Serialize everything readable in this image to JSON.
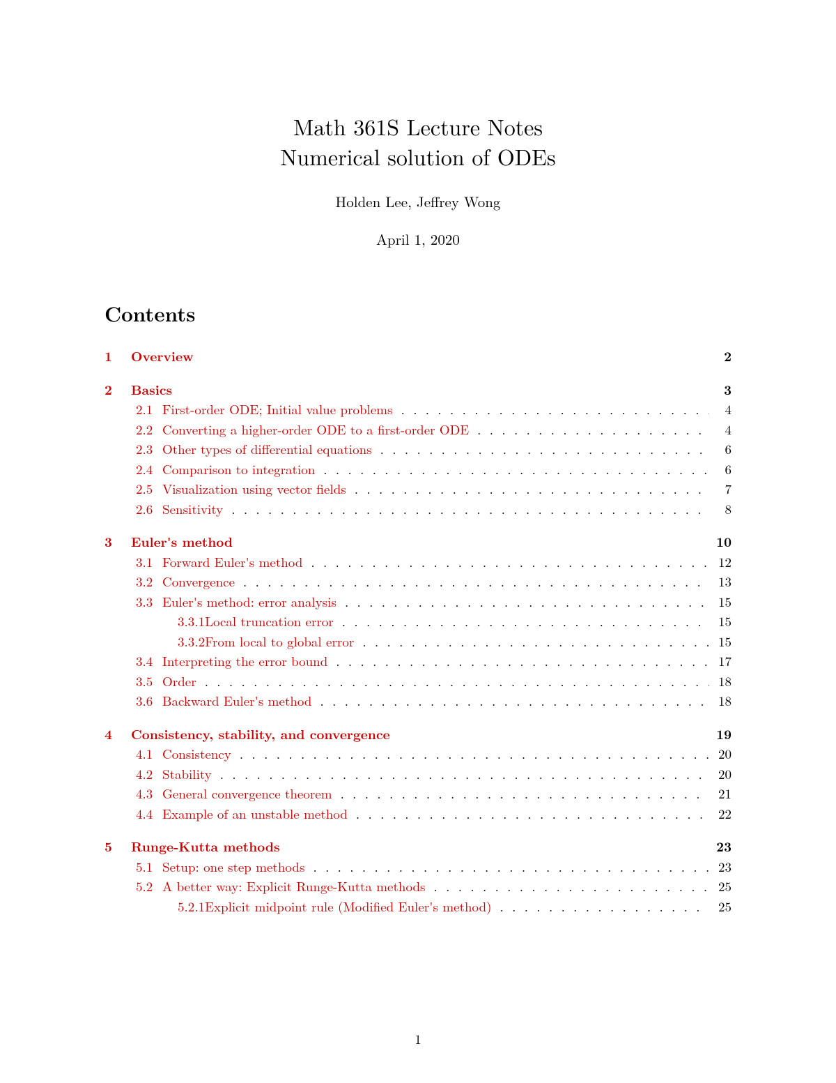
{
  "title": {
    "line1": "Math 361S Lecture Notes",
    "line2": "Numerical solution of ODEs"
  },
  "authors": "Holden Lee, Jeffrey Wong",
  "date": "April 1, 2020",
  "contents_heading": "Contents",
  "link_color": "#cc0000",
  "text_color": "#000000",
  "background_color": "#ffffff",
  "font_sizes": {
    "title": 32,
    "authors": 21,
    "date": 21,
    "contents_heading": 29,
    "toc": 19,
    "page_number": 19
  },
  "page_number": "1",
  "toc": [
    {
      "num": "1",
      "title": "Overview",
      "page": "2",
      "subs": []
    },
    {
      "num": "2",
      "title": "Basics",
      "page": "3",
      "subs": [
        {
          "num": "2.1",
          "title": "First-order ODE; Initial value problems",
          "page": "4"
        },
        {
          "num": "2.2",
          "title": "Converting a higher-order ODE to a first-order ODE",
          "page": "4"
        },
        {
          "num": "2.3",
          "title": "Other types of differential equations",
          "page": "6"
        },
        {
          "num": "2.4",
          "title": "Comparison to integration",
          "page": "6"
        },
        {
          "num": "2.5",
          "title": "Visualization using vector fields",
          "page": "7"
        },
        {
          "num": "2.6",
          "title": "Sensitivity",
          "page": "8"
        }
      ]
    },
    {
      "num": "3",
      "title": "Euler's method",
      "page": "10",
      "subs": [
        {
          "num": "3.1",
          "title": "Forward Euler's method",
          "page": "12"
        },
        {
          "num": "3.2",
          "title": "Convergence",
          "page": "13"
        },
        {
          "num": "3.3",
          "title": "Euler's method: error analysis",
          "page": "15",
          "subs": [
            {
              "num": "3.3.1",
              "title": "Local truncation error",
              "page": "15"
            },
            {
              "num": "3.3.2",
              "title": "From local to global error",
              "page": "15"
            }
          ]
        },
        {
          "num": "3.4",
          "title": "Interpreting the error bound",
          "page": "17"
        },
        {
          "num": "3.5",
          "title": "Order",
          "page": "18"
        },
        {
          "num": "3.6",
          "title": "Backward Euler's method",
          "page": "18"
        }
      ]
    },
    {
      "num": "4",
      "title": "Consistency, stability, and convergence",
      "page": "19",
      "subs": [
        {
          "num": "4.1",
          "title": "Consistency",
          "page": "20"
        },
        {
          "num": "4.2",
          "title": "Stability",
          "page": "20"
        },
        {
          "num": "4.3",
          "title": "General convergence theorem",
          "page": "21"
        },
        {
          "num": "4.4",
          "title": "Example of an unstable method",
          "page": "22"
        }
      ]
    },
    {
      "num": "5",
      "title": "Runge-Kutta methods",
      "page": "23",
      "subs": [
        {
          "num": "5.1",
          "title": "Setup: one step methods",
          "page": "23"
        },
        {
          "num": "5.2",
          "title": "A better way: Explicit Runge-Kutta methods",
          "page": "25",
          "subs": [
            {
              "num": "5.2.1",
              "title": "Explicit midpoint rule (Modified Euler's method)",
              "page": "25"
            }
          ]
        }
      ]
    }
  ]
}
